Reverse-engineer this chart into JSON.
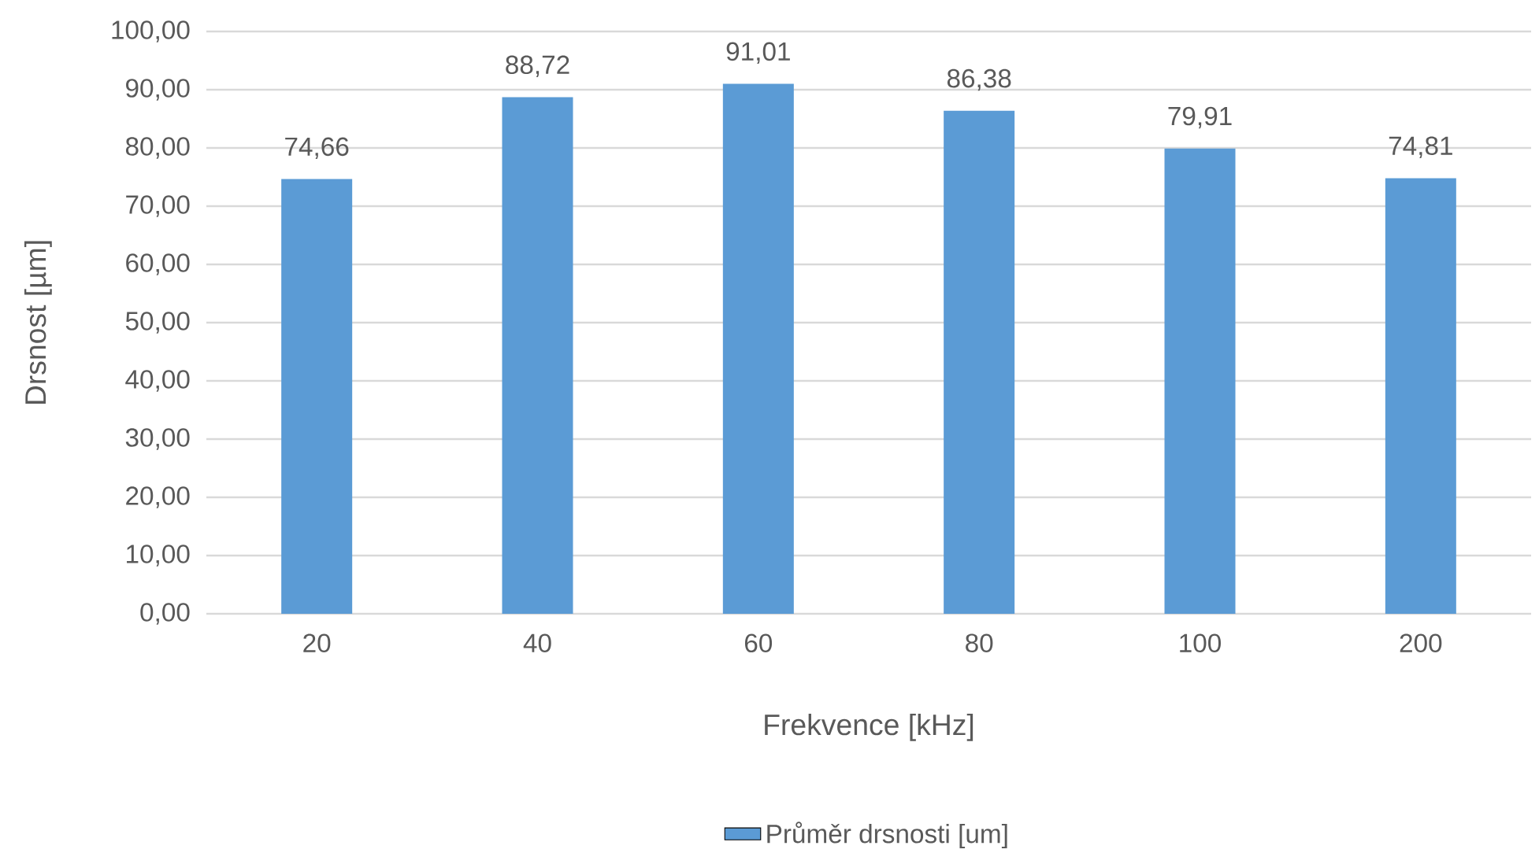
{
  "chart_data": {
    "type": "bar",
    "xlabel": "Frekvence [kHz]",
    "ylabel": "Drsnost [µm]",
    "categories": [
      "20",
      "40",
      "60",
      "80",
      "100",
      "200"
    ],
    "series": [
      {
        "name": "Průměr drsnosti [um]",
        "color": "#5b9bd5",
        "values": [
          74.66,
          88.72,
          91.01,
          86.38,
          79.91,
          74.81
        ],
        "value_labels": [
          "74,66",
          "88,72",
          "91,01",
          "86,38",
          "79,91",
          "74,81"
        ]
      }
    ],
    "ylim": [
      0,
      100
    ],
    "yticks": [
      {
        "value": 0,
        "label": "0,00"
      },
      {
        "value": 10,
        "label": "10,00"
      },
      {
        "value": 20,
        "label": "20,00"
      },
      {
        "value": 30,
        "label": "30,00"
      },
      {
        "value": 40,
        "label": "40,00"
      },
      {
        "value": 50,
        "label": "50,00"
      },
      {
        "value": 60,
        "label": "60,00"
      },
      {
        "value": 70,
        "label": "70,00"
      },
      {
        "value": 80,
        "label": "80,00"
      },
      {
        "value": 90,
        "label": "90,00"
      },
      {
        "value": 100,
        "label": "100,00"
      }
    ],
    "grid": "y",
    "legend": "bottom"
  }
}
